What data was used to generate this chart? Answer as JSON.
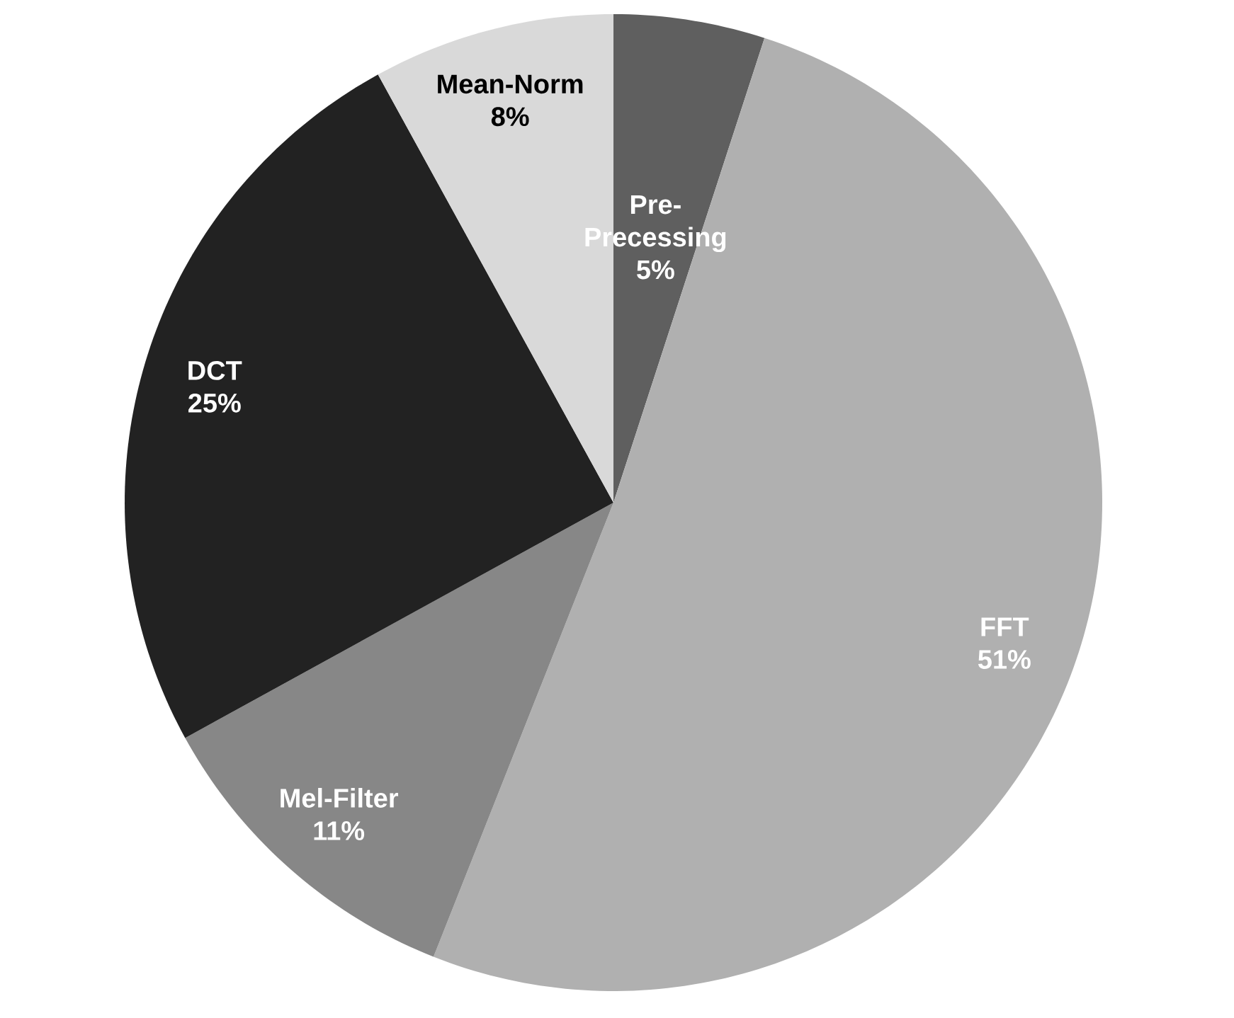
{
  "chart_data": {
    "type": "pie",
    "categories": [
      "Pre-Precessing",
      "FFT",
      "Mel-Filter",
      "DCT",
      "Mean-Norm"
    ],
    "values": [
      5,
      51,
      11,
      25,
      8
    ],
    "value_labels": [
      "5%",
      "51%",
      "11%",
      "25%",
      "8%"
    ],
    "colors": [
      "#5f5f5f",
      "#b0b0b0",
      "#878787",
      "#222222",
      "#d9d9d9"
    ]
  }
}
